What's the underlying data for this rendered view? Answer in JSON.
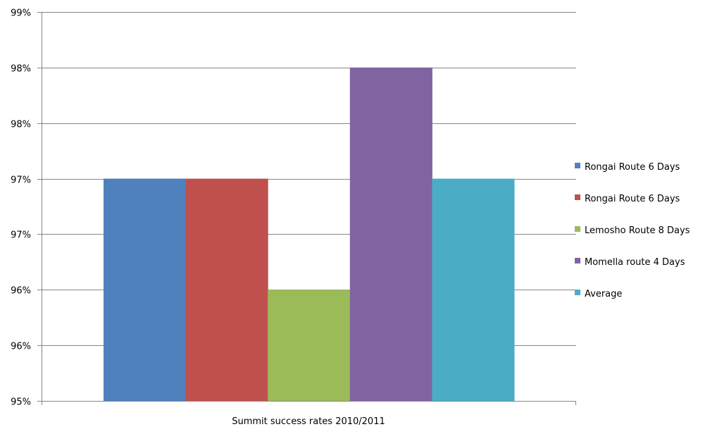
{
  "chart_data": {
    "type": "bar",
    "title": "",
    "xlabel": "Summit success rates 2010/2011",
    "ylabel": "",
    "categories": [
      "Summit success rates 2010/2011"
    ],
    "series": [
      {
        "name": "Rongai Route 6 Days",
        "values": [
          97.0
        ],
        "color": "#4F81BD"
      },
      {
        "name": "Rongai Route 6 Days",
        "values": [
          97.0
        ],
        "color": "#C0504D"
      },
      {
        "name": "Lemosho Route 8 Days",
        "values": [
          96.0
        ],
        "color": "#9BBB59"
      },
      {
        "name": "Momella route 4 Days",
        "values": [
          98.0
        ],
        "color": "#8064A2"
      },
      {
        "name": "Average",
        "values": [
          97.0
        ],
        "color": "#4BACC6"
      }
    ],
    "ylim": [
      95,
      98.5
    ],
    "yticks": [
      95,
      95.5,
      96,
      96.5,
      97,
      97.5,
      98,
      98.5
    ],
    "ytick_labels": [
      "95%",
      "96%",
      "96%",
      "97%",
      "97%",
      "98%",
      "98%",
      "99%"
    ],
    "grid": true,
    "legend_position": "right"
  }
}
